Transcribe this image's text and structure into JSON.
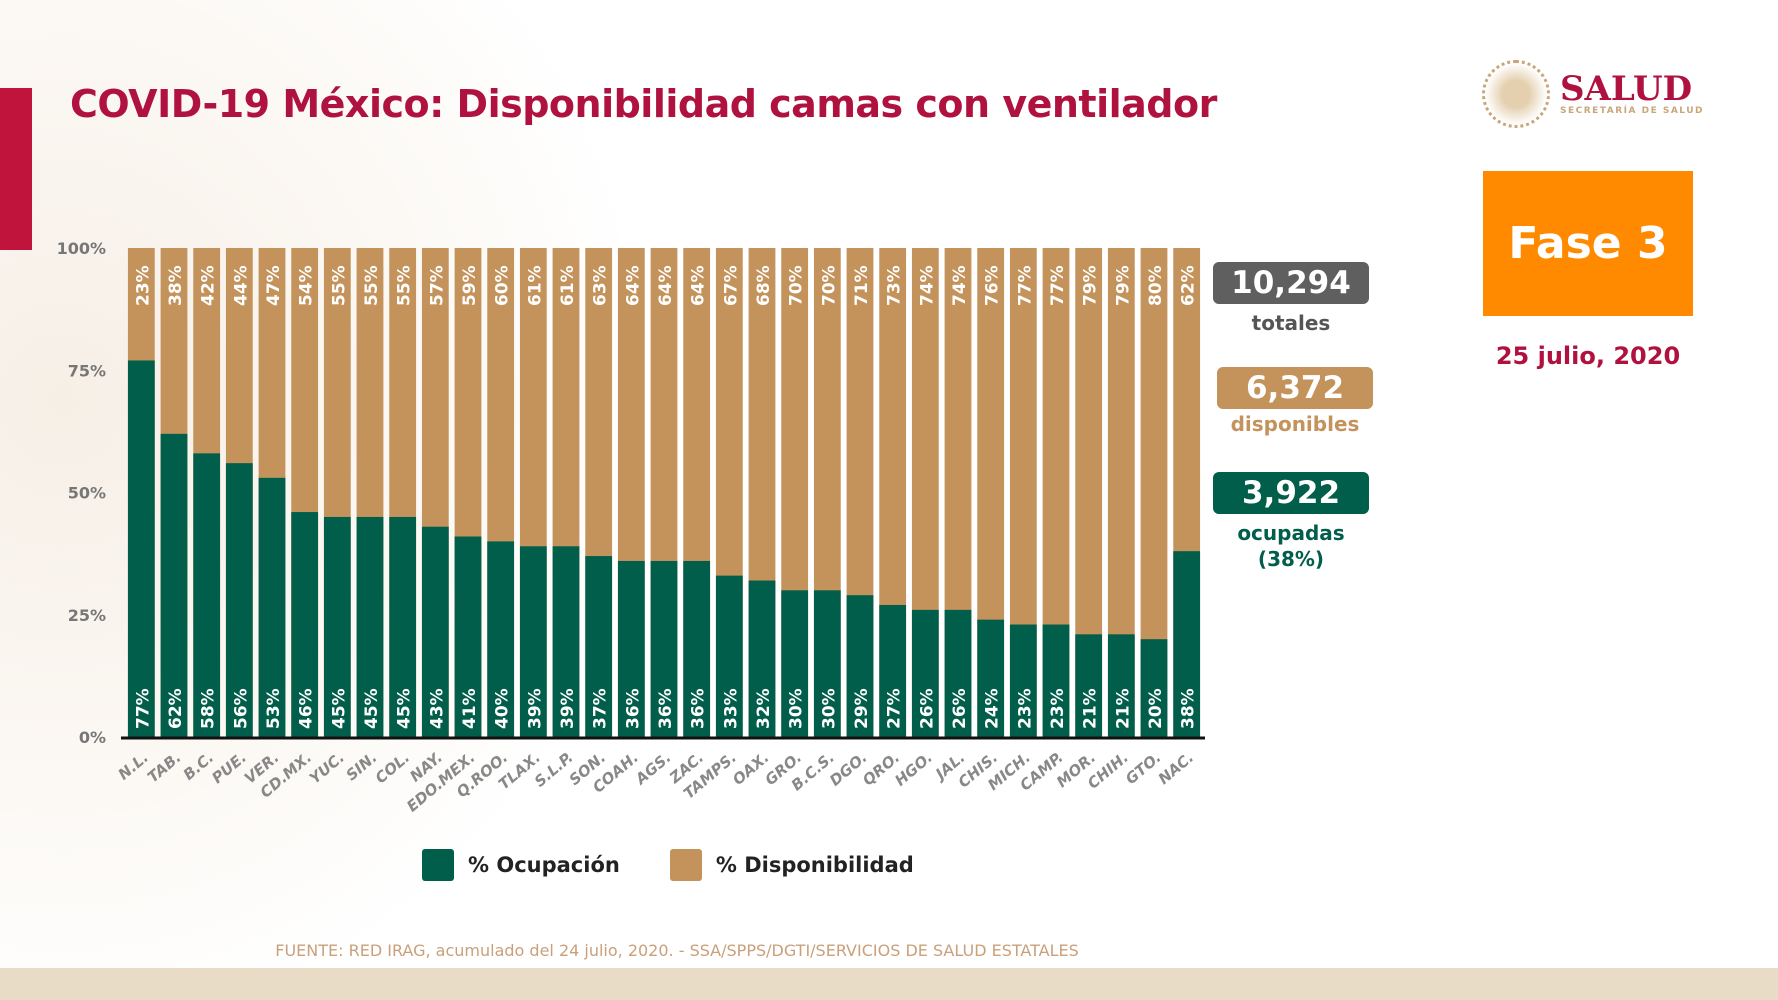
{
  "title": "COVID-19 México: Disponibilidad camas con ventilador",
  "logo": {
    "name": "SALUD",
    "subtitle": "SECRETARÍA DE SALUD"
  },
  "phase": "Fase 3",
  "date": "25 julio, 2020",
  "stats": {
    "totales": {
      "value": "10,294",
      "label": "totales"
    },
    "disponibles": {
      "value": "6,372",
      "label": "disponibles"
    },
    "ocupadas": {
      "value": "3,922",
      "label": "ocupadas",
      "pct": "(38%)"
    }
  },
  "source": "FUENTE: RED IRAG, acumulado del 24 julio, 2020. -  SSA/SPPS/DGTI/SERVICIOS DE SALUD ESTATALES",
  "colors": {
    "ocupacion": "#005e4a",
    "disponibilidad": "#c4935b",
    "title": "#b0123f",
    "fase": "#ff8a00",
    "totales": "#5f5f5f"
  },
  "chart_data": {
    "type": "bar",
    "stacked": true,
    "categories": [
      "N.L.",
      "TAB.",
      "B.C.",
      "PUE.",
      "VER.",
      "CD.MX.",
      "YUC.",
      "SIN.",
      "COL.",
      "NAY.",
      "EDO.MEX.",
      "Q.ROO.",
      "TLAX.",
      "S.L.P.",
      "SON.",
      "COAH.",
      "AGS.",
      "ZAC.",
      "TAMPS.",
      "OAX.",
      "GRO.",
      "B.C.S.",
      "DGO.",
      "QRO.",
      "HGO.",
      "JAL.",
      "CHIS.",
      "MICH.",
      "CAMP.",
      "MOR.",
      "CHIH.",
      "GTO.",
      "NAC."
    ],
    "series": [
      {
        "name": "% Ocupación",
        "values": [
          77,
          62,
          58,
          56,
          53,
          46,
          45,
          45,
          45,
          43,
          41,
          40,
          39,
          39,
          37,
          36,
          36,
          36,
          33,
          32,
          30,
          30,
          29,
          27,
          26,
          26,
          24,
          23,
          23,
          21,
          21,
          20,
          38
        ]
      },
      {
        "name": "% Disponibilidad",
        "values": [
          23,
          38,
          42,
          44,
          47,
          54,
          55,
          55,
          55,
          57,
          59,
          60,
          61,
          61,
          63,
          64,
          64,
          64,
          67,
          68,
          70,
          70,
          71,
          73,
          74,
          74,
          76,
          77,
          77,
          79,
          79,
          80,
          62
        ]
      }
    ],
    "yticks": [
      "0%",
      "25%",
      "50%",
      "75%",
      "100%"
    ],
    "ylim": [
      0,
      100
    ],
    "legend": "bottom"
  }
}
